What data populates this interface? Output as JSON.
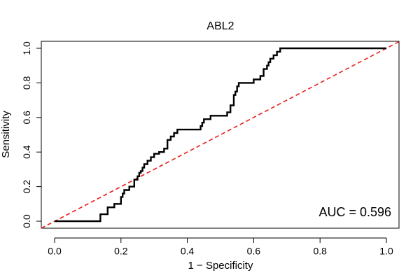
{
  "chart_data": {
    "type": "line",
    "title": "ABL2",
    "xlabel": "1 − Specificity",
    "ylabel": "Sensitivity",
    "xlim": [
      -0.04,
      1.04
    ],
    "ylim": [
      -0.04,
      1.04
    ],
    "x_ticks": [
      0.0,
      0.2,
      0.4,
      0.6,
      0.8,
      1.0
    ],
    "x_tick_labels": [
      "0.0",
      "0.2",
      "0.4",
      "0.6",
      "0.8",
      "1.0"
    ],
    "y_ticks": [
      0.0,
      0.2,
      0.4,
      0.6,
      0.8,
      1.0
    ],
    "y_tick_labels": [
      "0.0",
      "0.2",
      "0.4",
      "0.6",
      "0.8",
      "1.0"
    ],
    "grid": false,
    "annotation": "AUC = 0.596",
    "diagonal": {
      "x": [
        0,
        1
      ],
      "y": [
        0,
        1
      ],
      "color": "#e8201c",
      "style": "dashed"
    },
    "series": [
      {
        "color": "#000000",
        "x": [
          0.0,
          0.138,
          0.138,
          0.16,
          0.16,
          0.18,
          0.18,
          0.2,
          0.2,
          0.205,
          0.205,
          0.21,
          0.21,
          0.225,
          0.225,
          0.24,
          0.24,
          0.25,
          0.25,
          0.255,
          0.255,
          0.26,
          0.26,
          0.265,
          0.265,
          0.27,
          0.27,
          0.28,
          0.28,
          0.29,
          0.29,
          0.3,
          0.3,
          0.315,
          0.315,
          0.33,
          0.33,
          0.34,
          0.34,
          0.35,
          0.35,
          0.36,
          0.36,
          0.37,
          0.37,
          0.44,
          0.44,
          0.445,
          0.445,
          0.45,
          0.45,
          0.47,
          0.47,
          0.52,
          0.52,
          0.53,
          0.53,
          0.54,
          0.54,
          0.545,
          0.545,
          0.55,
          0.55,
          0.555,
          0.555,
          0.6,
          0.6,
          0.62,
          0.62,
          0.63,
          0.63,
          0.64,
          0.64,
          0.645,
          0.645,
          0.65,
          0.65,
          0.66,
          0.66,
          0.67,
          0.67,
          0.68,
          0.68,
          1.0
        ],
        "y": [
          0.0,
          0.0,
          0.04,
          0.04,
          0.08,
          0.08,
          0.1,
          0.1,
          0.14,
          0.14,
          0.16,
          0.16,
          0.18,
          0.18,
          0.2,
          0.2,
          0.24,
          0.24,
          0.26,
          0.26,
          0.28,
          0.28,
          0.29,
          0.29,
          0.31,
          0.31,
          0.33,
          0.33,
          0.35,
          0.35,
          0.37,
          0.37,
          0.39,
          0.39,
          0.4,
          0.4,
          0.42,
          0.42,
          0.47,
          0.47,
          0.49,
          0.49,
          0.51,
          0.51,
          0.53,
          0.53,
          0.55,
          0.55,
          0.57,
          0.57,
          0.59,
          0.59,
          0.61,
          0.61,
          0.63,
          0.63,
          0.67,
          0.67,
          0.73,
          0.73,
          0.75,
          0.75,
          0.78,
          0.78,
          0.8,
          0.8,
          0.82,
          0.82,
          0.84,
          0.84,
          0.88,
          0.88,
          0.9,
          0.9,
          0.92,
          0.92,
          0.94,
          0.94,
          0.96,
          0.96,
          0.98,
          0.98,
          1.0,
          1.0
        ]
      }
    ]
  }
}
